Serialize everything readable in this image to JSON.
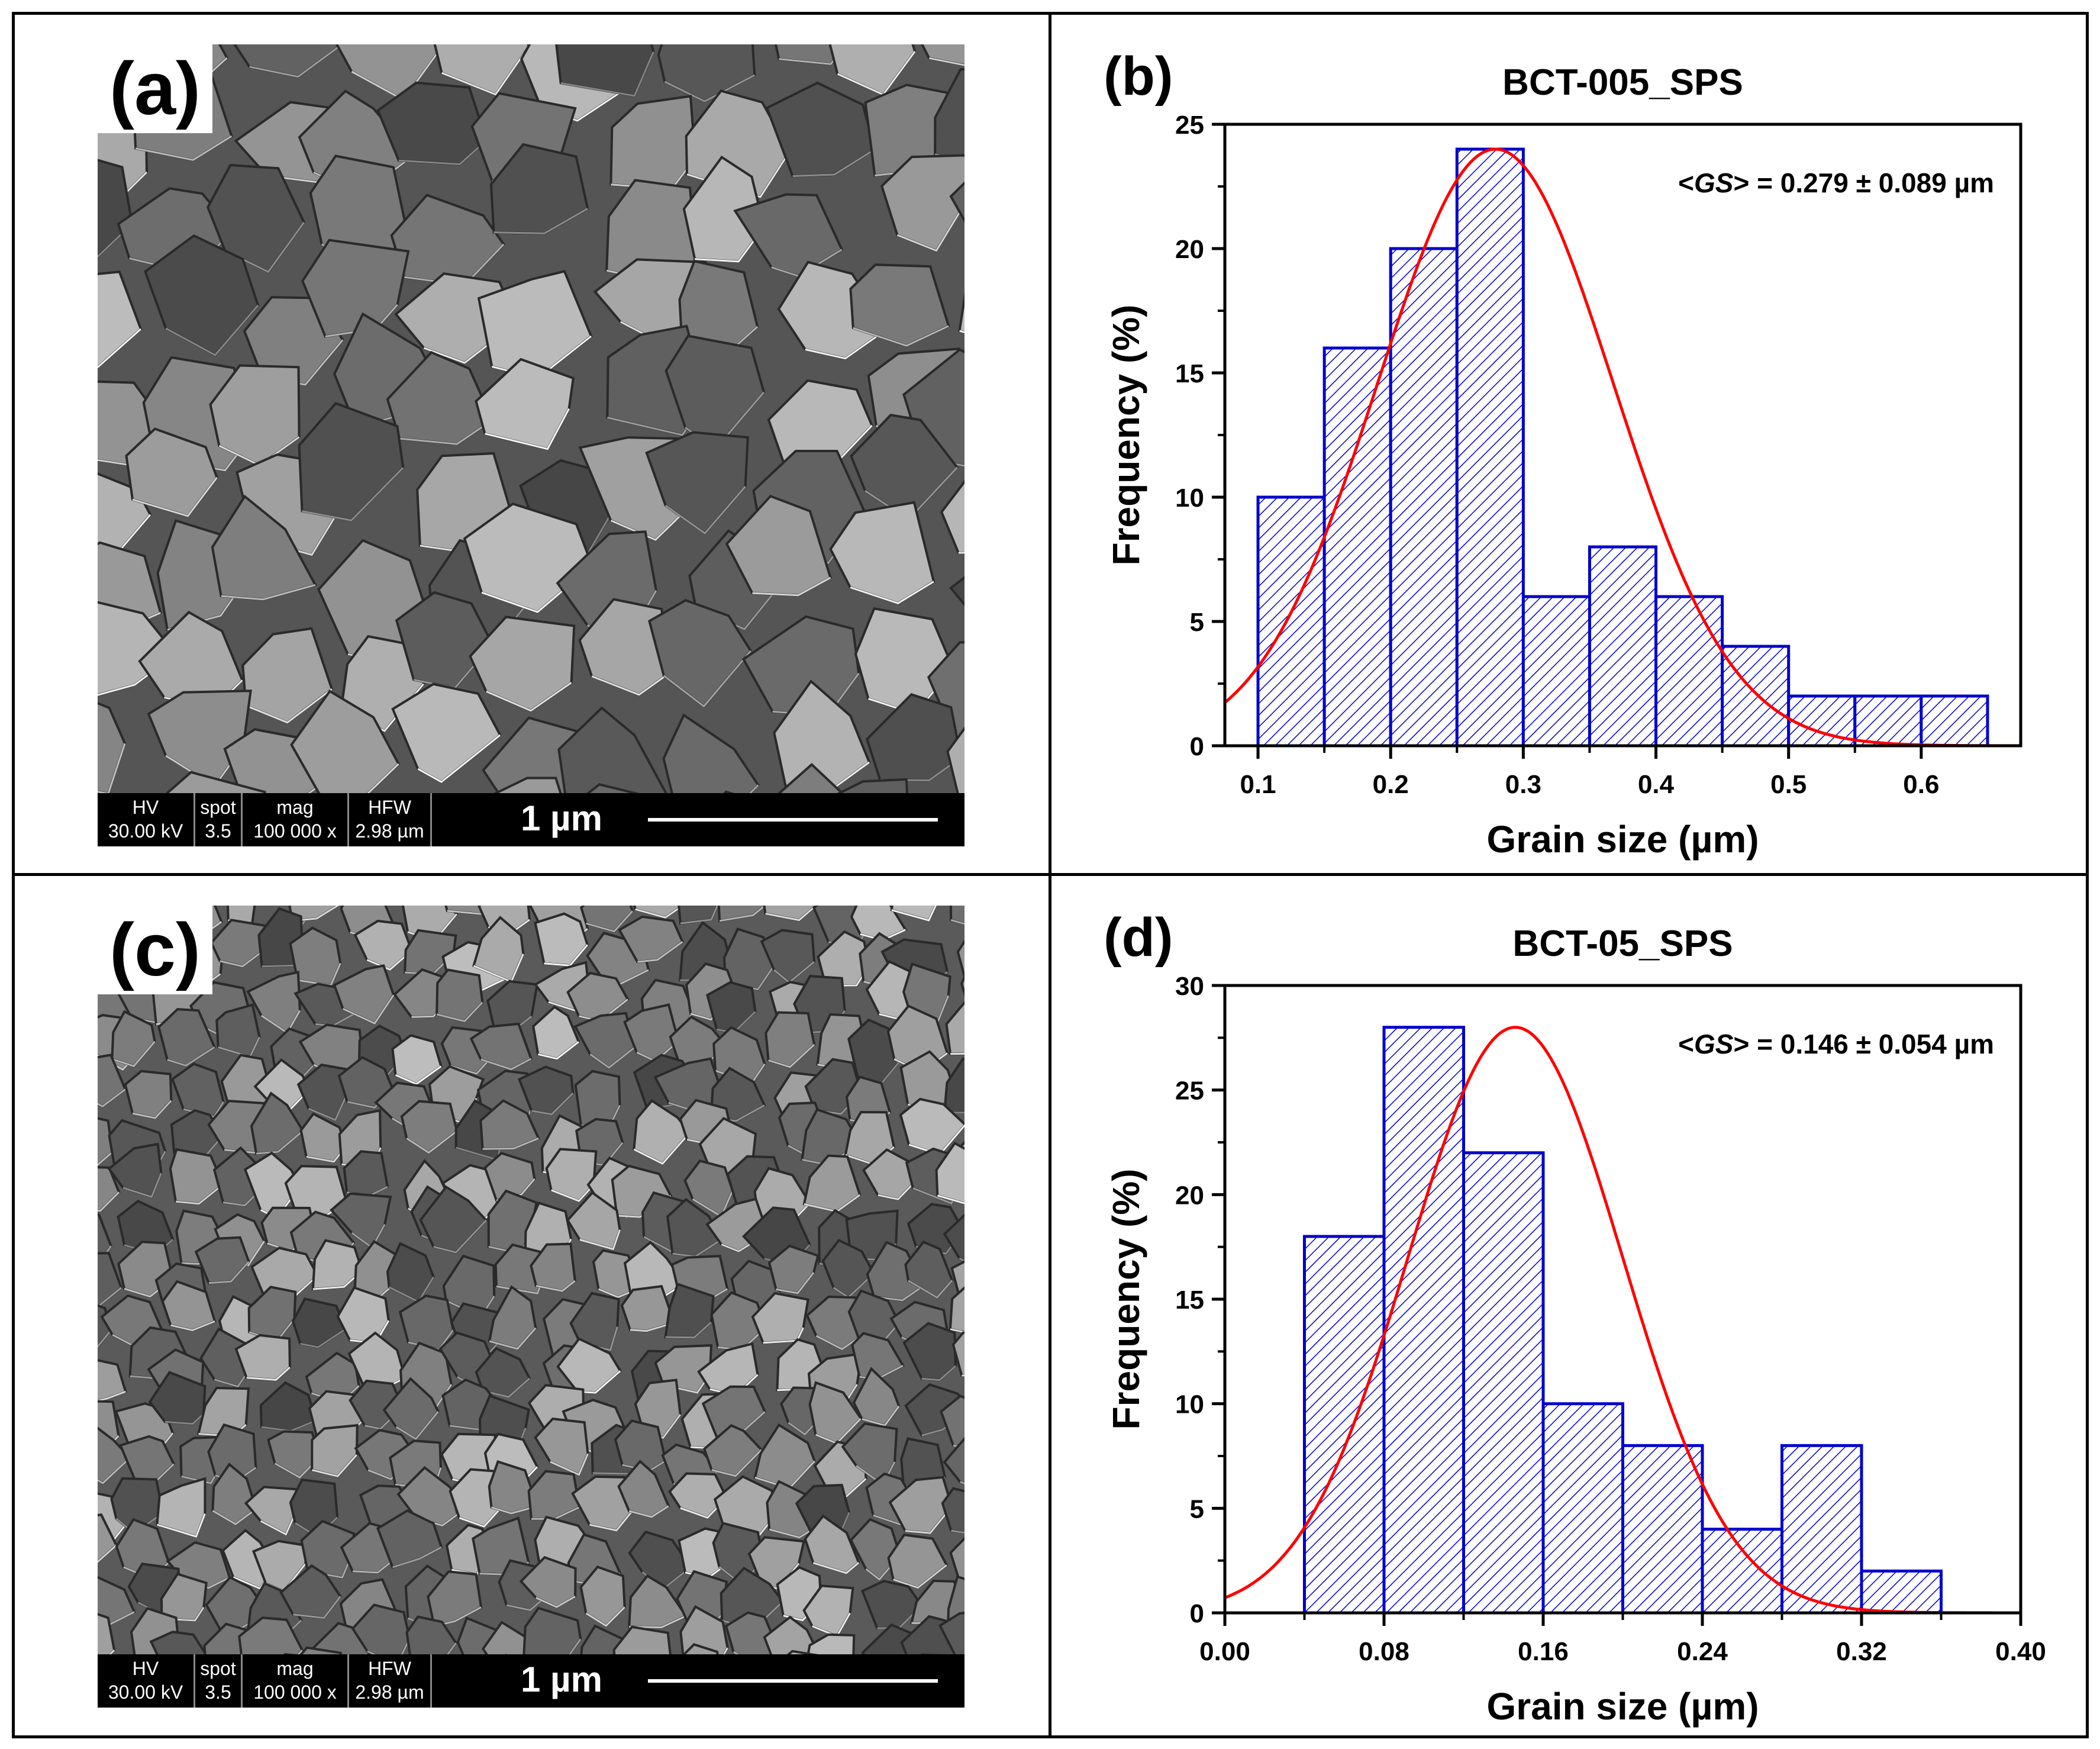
{
  "panels": {
    "a": {
      "letter": "(a)"
    },
    "b": {
      "letter": "(b)"
    },
    "c": {
      "letter": "(c)"
    },
    "d": {
      "letter": "(d)"
    }
  },
  "sem_databar": {
    "hv_label": "HV",
    "hv_value": "30.00 kV",
    "spot_label": "spot",
    "spot_value": "3.5",
    "mag_label": "mag",
    "mag_value": "100 000 x",
    "hfw_label": "HFW",
    "hfw_value": "2.98 µm",
    "scale_text": "1 µm"
  },
  "chart_data": [
    {
      "type": "bar",
      "title": "BCT-005_SPS",
      "xlabel": "Grain size (µm)",
      "ylabel": "Frequency (%)",
      "annotation_prefix": "<",
      "annotation_var": "GS",
      "annotation_suffix": "> = 0.279 ± 0.089 µm",
      "xlim": [
        0.075,
        0.675
      ],
      "ylim": [
        0,
        25
      ],
      "xticks": [
        0.1,
        0.2,
        0.3,
        0.4,
        0.5,
        0.6
      ],
      "xtick_labels": [
        "0.1",
        "0.2",
        "0.3",
        "0.4",
        "0.5",
        "0.6"
      ],
      "yticks": [
        0,
        5,
        10,
        15,
        20,
        25
      ],
      "ytick_labels": [
        "0",
        "5",
        "10",
        "15",
        "20",
        "25"
      ],
      "bin_width": 0.05,
      "bins": [
        0.1,
        0.15,
        0.2,
        0.25,
        0.3,
        0.35,
        0.4,
        0.45,
        0.5,
        0.55,
        0.6
      ],
      "values": [
        10,
        16,
        20,
        24,
        6,
        8,
        6,
        4,
        2,
        2,
        2
      ],
      "fit": {
        "type": "gaussian",
        "mean": 0.279,
        "sd": 0.089,
        "peak": 24.0,
        "color": "#ff0000"
      },
      "bar_color": "#0000cc",
      "grid": false
    },
    {
      "type": "bar",
      "title": "BCT-05_SPS",
      "xlabel": "Grain size (µm)",
      "ylabel": "Frequency (%)",
      "annotation_prefix": "<",
      "annotation_var": "GS",
      "annotation_suffix": "> = 0.146 ± 0.054 µm",
      "xlim": [
        0.0,
        0.4
      ],
      "ylim": [
        0,
        30
      ],
      "xticks": [
        0.0,
        0.08,
        0.16,
        0.24,
        0.32,
        0.4
      ],
      "xtick_labels": [
        "0.00",
        "0.08",
        "0.16",
        "0.24",
        "0.32",
        "0.40"
      ],
      "yticks": [
        0,
        5,
        10,
        15,
        20,
        25,
        30
      ],
      "ytick_labels": [
        "0",
        "5",
        "10",
        "15",
        "20",
        "25",
        "30"
      ],
      "bin_width": 0.04,
      "bins": [
        0.04,
        0.08,
        0.12,
        0.16,
        0.2,
        0.24,
        0.28,
        0.32
      ],
      "values": [
        18,
        28,
        22,
        10,
        8,
        4,
        8,
        2
      ],
      "fit": {
        "type": "gaussian",
        "mean": 0.146,
        "sd": 0.054,
        "peak": 28.0,
        "color": "#ff0000"
      },
      "bar_color": "#0000cc",
      "grid": false
    }
  ]
}
